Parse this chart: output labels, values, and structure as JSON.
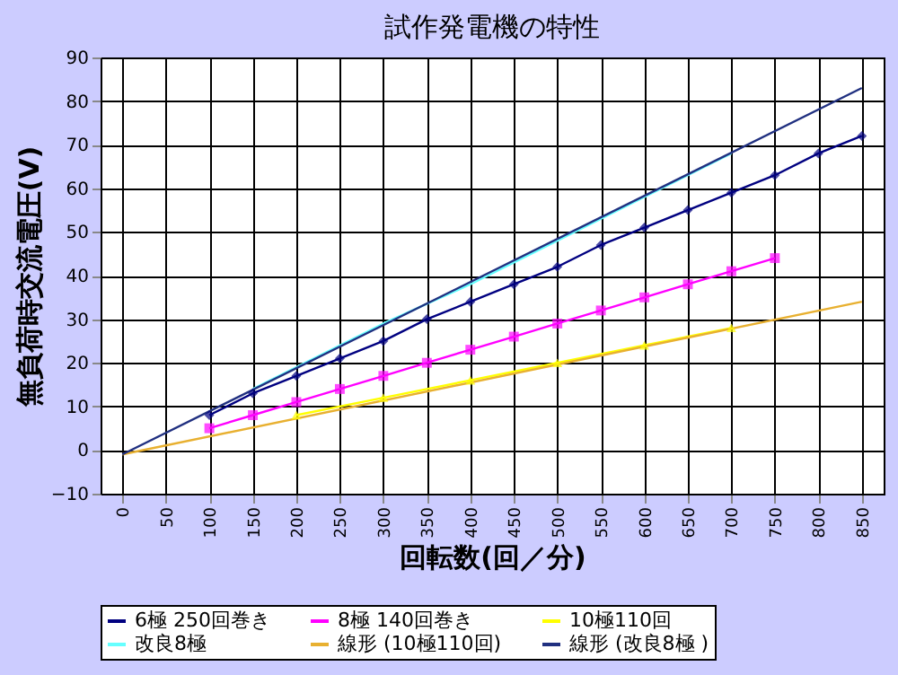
{
  "chart_data": {
    "type": "line",
    "title": "試作発電機の特性",
    "xlabel": "回転数(回／分)",
    "ylabel": "無負荷時交流電圧(V)",
    "xlim": [
      -25,
      875
    ],
    "xticks": [
      0,
      50,
      100,
      150,
      200,
      250,
      300,
      350,
      400,
      450,
      500,
      550,
      600,
      650,
      700,
      750,
      800,
      850
    ],
    "ylim": [
      -10,
      90
    ],
    "yticks": [
      -10,
      0,
      10,
      20,
      30,
      40,
      50,
      60,
      70,
      80,
      90
    ],
    "grid": true,
    "legend": "bottom",
    "line_style": "solid",
    "series": [
      {
        "name": "6極 250回巻き",
        "color": "#000080",
        "marker": "diamond",
        "x": [
          100,
          150,
          200,
          250,
          300,
          350,
          400,
          450,
          500,
          550,
          600,
          650,
          700,
          750,
          800,
          850
        ],
        "values": [
          8,
          13,
          17,
          21,
          25,
          30,
          34,
          38,
          42,
          47,
          51,
          55,
          59,
          63,
          68,
          72
        ]
      },
      {
        "name": "8極 140回巻き",
        "color": "#ff00ff",
        "marker": "square",
        "x": [
          100,
          150,
          200,
          250,
          300,
          350,
          400,
          450,
          500,
          550,
          600,
          650,
          700,
          750
        ],
        "values": [
          5,
          8,
          11,
          14,
          17,
          20,
          23,
          26,
          29,
          32,
          35,
          38,
          41,
          44
        ]
      },
      {
        "name": "10極110回",
        "color": "#ffff00",
        "marker": "triangle",
        "x": [
          200,
          300,
          400,
          500,
          600,
          700
        ],
        "values": [
          8,
          12,
          16,
          20,
          24,
          28
        ]
      },
      {
        "name": "改良8極",
        "color": "#66ffff",
        "marker": "none",
        "x": [
          150,
          200,
          300,
          400,
          500,
          600,
          700
        ],
        "values": [
          14,
          19,
          29,
          38,
          48,
          58,
          68
        ]
      },
      {
        "name": "線形 (10極110回)",
        "color": "#e8b030",
        "marker": "none",
        "x": [
          0,
          850
        ],
        "values": [
          -1,
          34
        ]
      },
      {
        "name": "線形 (改良8極 )",
        "color": "#203080",
        "marker": "none",
        "x": [
          0,
          850
        ],
        "values": [
          -1,
          83
        ]
      }
    ]
  }
}
